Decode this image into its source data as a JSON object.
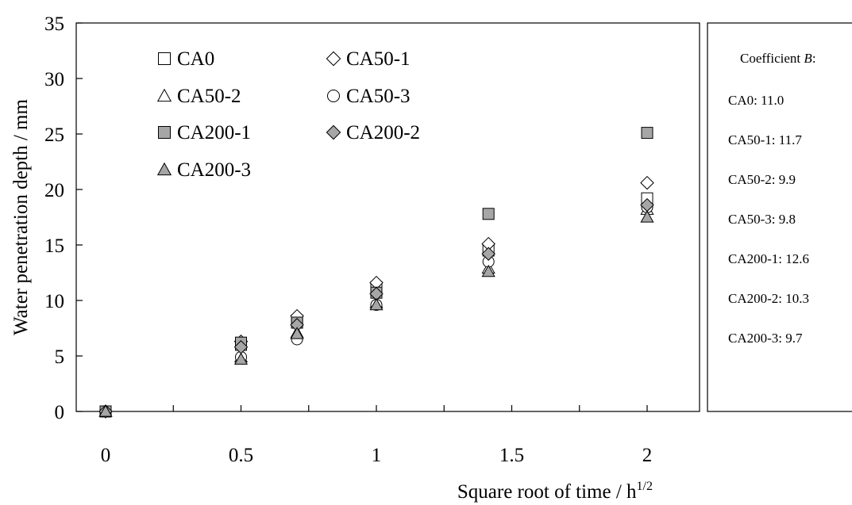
{
  "chart_data": {
    "type": "scatter",
    "title": "",
    "xlabel": "Square root of time / h",
    "xlabel_superscript": "1/2",
    "ylabel": "Water penetration depth / mm",
    "xlim": [
      0,
      2.2
    ],
    "ylim": [
      0,
      35
    ],
    "x_ticks": [
      "0",
      "0.5",
      "1",
      "1.5",
      "2"
    ],
    "y_ticks": [
      "0",
      "5",
      "10",
      "15",
      "20",
      "25",
      "30",
      "35"
    ],
    "grid": false,
    "legend_position": "top-left",
    "series": [
      {
        "name": "CA0",
        "marker": "square",
        "fill": "#ffffff",
        "x": [
          0,
          0.5,
          0.707,
          1,
          1.414,
          2
        ],
        "y": [
          0,
          6.0,
          8.2,
          11.2,
          14.5,
          19.2
        ]
      },
      {
        "name": "CA50-1",
        "marker": "diamond",
        "fill": "#ffffff",
        "x": [
          0,
          0.5,
          0.707,
          1,
          1.414,
          2
        ],
        "y": [
          0,
          6.3,
          8.6,
          11.6,
          15.1,
          20.6
        ]
      },
      {
        "name": "CA50-2",
        "marker": "triangle",
        "fill": "#ffffff",
        "x": [
          0,
          0.5,
          0.707,
          1,
          1.414,
          2
        ],
        "y": [
          0,
          4.9,
          7.1,
          9.8,
          12.9,
          18.2
        ]
      },
      {
        "name": "CA50-3",
        "marker": "circle",
        "fill": "#ffffff",
        "x": [
          0,
          0.5,
          0.707,
          1,
          1.414,
          2
        ],
        "y": [
          0,
          4.9,
          6.5,
          9.6,
          13.5,
          18.4
        ]
      },
      {
        "name": "CA200-1",
        "marker": "square",
        "fill": "#a6a6a6",
        "x": [
          0,
          0.5,
          0.707,
          1,
          1.414,
          2
        ],
        "y": [
          0,
          6.2,
          8.0,
          10.7,
          17.8,
          25.1
        ]
      },
      {
        "name": "CA200-2",
        "marker": "diamond",
        "fill": "#a6a6a6",
        "x": [
          0,
          0.5,
          0.707,
          1,
          1.414,
          2
        ],
        "y": [
          0,
          5.8,
          7.8,
          10.6,
          14.2,
          18.6
        ]
      },
      {
        "name": "CA200-3",
        "marker": "triangle",
        "fill": "#a6a6a6",
        "x": [
          0,
          0.5,
          0.707,
          1,
          1.414,
          2
        ],
        "y": [
          0,
          4.7,
          7.0,
          9.6,
          12.6,
          17.5
        ]
      }
    ],
    "coefficient_box": {
      "title_prefix": "Coefficient ",
      "title_italic": "B",
      "title_suffix": ":",
      "lines": [
        "CA0: 11.0",
        "CA50-1: 11.7",
        "CA50-2: 9.9",
        "CA50-3: 9.8",
        "CA200-1: 12.6",
        "CA200-2: 10.3",
        "CA200-3: 9.7"
      ]
    }
  }
}
